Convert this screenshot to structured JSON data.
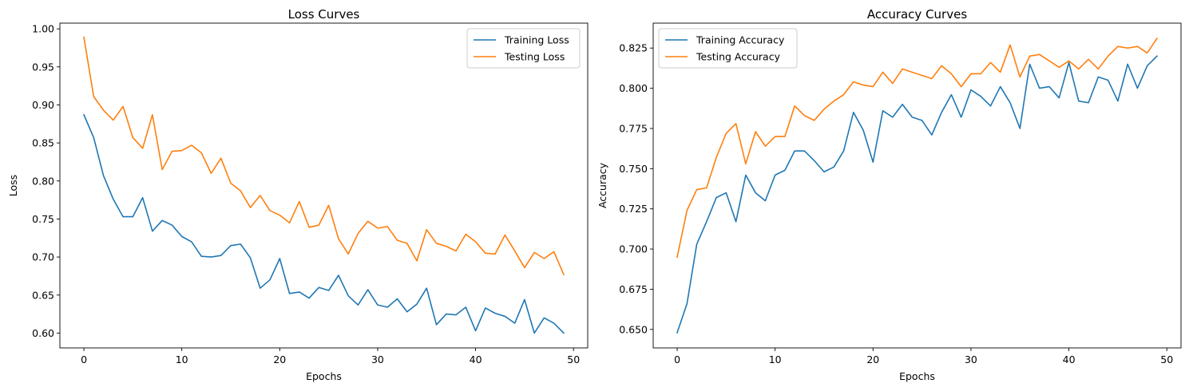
{
  "chart_data": [
    {
      "type": "line",
      "title": "Loss Curves",
      "xlabel": "Epochs",
      "ylabel": "Loss",
      "xlim": [
        -2.45,
        51.45
      ],
      "ylim": [
        0.5805,
        1.0075
      ],
      "xticks": [
        0,
        10,
        20,
        30,
        40,
        50
      ],
      "xtick_labels": [
        "0",
        "10",
        "20",
        "30",
        "40",
        "50"
      ],
      "yticks": [
        0.6,
        0.65,
        0.7,
        0.75,
        0.8,
        0.85,
        0.9,
        0.95,
        1.0
      ],
      "ytick_labels": [
        "0.60",
        "0.65",
        "0.70",
        "0.75",
        "0.80",
        "0.85",
        "0.90",
        "0.95",
        "1.00"
      ],
      "grid": false,
      "legend_position": "top-right",
      "x": [
        0,
        1,
        2,
        3,
        4,
        5,
        6,
        7,
        8,
        9,
        10,
        11,
        12,
        13,
        14,
        15,
        16,
        17,
        18,
        19,
        20,
        21,
        22,
        23,
        24,
        25,
        26,
        27,
        28,
        29,
        30,
        31,
        32,
        33,
        34,
        35,
        36,
        37,
        38,
        39,
        40,
        41,
        42,
        43,
        44,
        45,
        46,
        47,
        48,
        49
      ],
      "series": [
        {
          "name": "Training Loss",
          "color": "#1f77b4",
          "values": [
            0.887,
            0.857,
            0.807,
            0.776,
            0.753,
            0.753,
            0.778,
            0.734,
            0.748,
            0.742,
            0.727,
            0.72,
            0.701,
            0.7,
            0.702,
            0.715,
            0.717,
            0.699,
            0.659,
            0.67,
            0.698,
            0.652,
            0.654,
            0.646,
            0.66,
            0.656,
            0.676,
            0.649,
            0.637,
            0.657,
            0.637,
            0.634,
            0.645,
            0.628,
            0.638,
            0.659,
            0.611,
            0.625,
            0.624,
            0.634,
            0.603,
            0.633,
            0.626,
            0.622,
            0.613,
            0.644,
            0.6,
            0.62,
            0.613,
            0.6
          ]
        },
        {
          "name": "Testing Loss",
          "color": "#ff7f0e",
          "values": [
            0.989,
            0.911,
            0.893,
            0.88,
            0.898,
            0.857,
            0.843,
            0.887,
            0.815,
            0.839,
            0.84,
            0.847,
            0.837,
            0.81,
            0.83,
            0.797,
            0.787,
            0.765,
            0.781,
            0.761,
            0.755,
            0.745,
            0.773,
            0.739,
            0.742,
            0.768,
            0.724,
            0.704,
            0.731,
            0.747,
            0.738,
            0.74,
            0.722,
            0.718,
            0.695,
            0.736,
            0.718,
            0.714,
            0.708,
            0.73,
            0.72,
            0.705,
            0.704,
            0.729,
            0.708,
            0.686,
            0.706,
            0.698,
            0.707,
            0.677
          ]
        }
      ]
    },
    {
      "type": "line",
      "title": "Accuracy Curves",
      "xlabel": "Epochs",
      "ylabel": "Accuracy",
      "xlim": [
        -2.45,
        51.45
      ],
      "ylim": [
        0.6385,
        0.8405
      ],
      "xticks": [
        0,
        10,
        20,
        30,
        40,
        50
      ],
      "xtick_labels": [
        "0",
        "10",
        "20",
        "30",
        "40",
        "50"
      ],
      "yticks": [
        0.65,
        0.675,
        0.7,
        0.725,
        0.75,
        0.775,
        0.8,
        0.825
      ],
      "ytick_labels": [
        "0.650",
        "0.675",
        "0.700",
        "0.725",
        "0.750",
        "0.775",
        "0.800",
        "0.825"
      ],
      "grid": false,
      "legend_position": "top-left",
      "x": [
        0,
        1,
        2,
        3,
        4,
        5,
        6,
        7,
        8,
        9,
        10,
        11,
        12,
        13,
        14,
        15,
        16,
        17,
        18,
        19,
        20,
        21,
        22,
        23,
        24,
        25,
        26,
        27,
        28,
        29,
        30,
        31,
        32,
        33,
        34,
        35,
        36,
        37,
        38,
        39,
        40,
        41,
        42,
        43,
        44,
        45,
        46,
        47,
        48,
        49
      ],
      "series": [
        {
          "name": "Training Accuracy",
          "color": "#1f77b4",
          "values": [
            0.648,
            0.666,
            0.703,
            0.717,
            0.732,
            0.735,
            0.717,
            0.746,
            0.735,
            0.73,
            0.746,
            0.749,
            0.761,
            0.761,
            0.755,
            0.748,
            0.751,
            0.761,
            0.785,
            0.774,
            0.754,
            0.786,
            0.782,
            0.79,
            0.782,
            0.78,
            0.771,
            0.785,
            0.796,
            0.782,
            0.799,
            0.795,
            0.789,
            0.801,
            0.791,
            0.775,
            0.815,
            0.8,
            0.801,
            0.794,
            0.816,
            0.792,
            0.791,
            0.807,
            0.805,
            0.792,
            0.815,
            0.8,
            0.814,
            0.82
          ]
        },
        {
          "name": "Testing Accuracy",
          "color": "#ff7f0e",
          "values": [
            0.695,
            0.724,
            0.737,
            0.738,
            0.757,
            0.772,
            0.778,
            0.753,
            0.773,
            0.764,
            0.77,
            0.77,
            0.789,
            0.783,
            0.78,
            0.787,
            0.792,
            0.796,
            0.804,
            0.802,
            0.801,
            0.81,
            0.803,
            0.812,
            0.81,
            0.808,
            0.806,
            0.814,
            0.809,
            0.801,
            0.809,
            0.809,
            0.816,
            0.81,
            0.827,
            0.807,
            0.82,
            0.821,
            0.817,
            0.813,
            0.817,
            0.812,
            0.818,
            0.812,
            0.82,
            0.826,
            0.825,
            0.826,
            0.822,
            0.831
          ]
        }
      ]
    }
  ]
}
